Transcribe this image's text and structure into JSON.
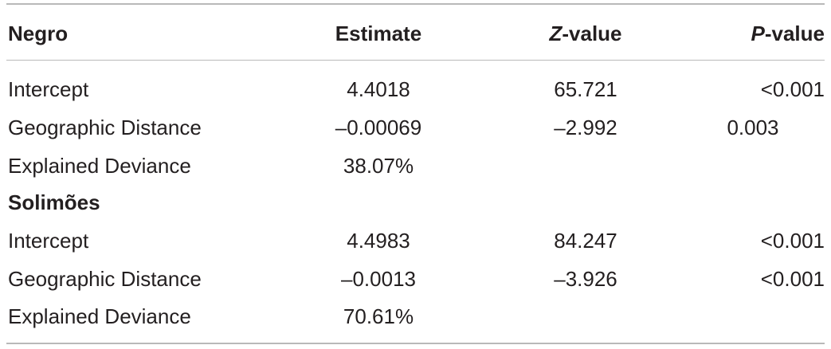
{
  "header": {
    "label_col": "Negro",
    "estimate_col": "Estimate",
    "z_italic": "Z",
    "z_rest": "-value",
    "p_italic": "P",
    "p_rest": "-value"
  },
  "negro": {
    "rows": [
      {
        "label": "Intercept",
        "estimate": "4.4018",
        "z": "65.721",
        "p": "<0.001"
      },
      {
        "label": "Geographic Distance",
        "estimate": "–0.00069",
        "z": "–2.992",
        "p": "0.003"
      },
      {
        "label": "Explained Deviance",
        "estimate": "38.07%",
        "z": "",
        "p": ""
      }
    ]
  },
  "solimoes": {
    "title": "Solimões",
    "rows": [
      {
        "label": "Intercept",
        "estimate": "4.4983",
        "z": "84.247",
        "p": "<0.001"
      },
      {
        "label": "Geographic Distance",
        "estimate": "–0.0013",
        "z": "–3.926",
        "p": "<0.001"
      },
      {
        "label": "Explained Deviance",
        "estimate": "70.61%",
        "z": "",
        "p": ""
      }
    ]
  }
}
